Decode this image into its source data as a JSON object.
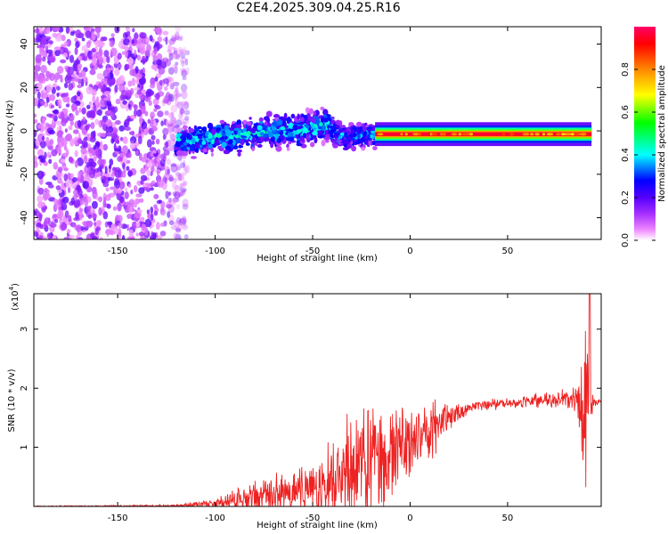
{
  "title": "C2E4.2025.309.04.25.R16",
  "chart_data": [
    {
      "type": "heatmap",
      "title": "",
      "xlabel": "Height of straight line (km)",
      "ylabel": "Frequency (Hz)",
      "xlim": [
        -193,
        98
      ],
      "ylim": [
        -50,
        48
      ],
      "xticks": [
        -150,
        -100,
        -50,
        0,
        50
      ],
      "yticks": [
        -40,
        -20,
        0,
        20,
        40
      ],
      "colorbar": {
        "label": "Normalized spectral amplitude",
        "range": [
          0.0,
          1.0
        ],
        "ticks": [
          "0.0",
          "0.2",
          "0.4",
          "0.6",
          "0.8"
        ],
        "tick_values": [
          0.0,
          0.2,
          0.4,
          0.6,
          0.8
        ],
        "colors": [
          "#ffffff",
          "#ee88ff",
          "#8800ff",
          "#0000ff",
          "#00ffff",
          "#00ff00",
          "#ffff00",
          "#ff8800",
          "#ff0000",
          "#ff0066"
        ]
      },
      "regions": [
        {
          "x": [
            -193,
            -120
          ],
          "freq_spread": 48,
          "amplitude": 0.15,
          "description_of_shape": "noise"
        },
        {
          "x": [
            -120,
            -40
          ],
          "freq_center_start": -5,
          "freq_center_end": 2,
          "freq_width": 10,
          "amplitude": 0.35
        },
        {
          "x": [
            -40,
            -18
          ],
          "freq_center": -2,
          "freq_width": 8,
          "amplitude": 0.3
        },
        {
          "x": [
            -18,
            93
          ],
          "freq_center": -1.5,
          "freq_width": 2,
          "amplitude": 0.95
        }
      ]
    },
    {
      "type": "line",
      "title": "",
      "xlabel": "Height of straight line (km)",
      "ylabel": "SNR (10 * v/v)",
      "y_multiplier": "(x10",
      "y_multiplier_exp": "4",
      "y_multiplier_close": ")",
      "xlim": [
        -193,
        98
      ],
      "ylim": [
        0,
        3.6
      ],
      "xticks": [
        -150,
        -100,
        -50,
        0,
        50
      ],
      "yticks": [
        1,
        2,
        3
      ],
      "series": [
        {
          "color": "#ee2222",
          "envelope": [
            {
              "x": -193,
              "mean": 0.0,
              "spread": 0.01
            },
            {
              "x": -120,
              "mean": 0.01,
              "spread": 0.02
            },
            {
              "x": -100,
              "mean": 0.05,
              "spread": 0.08
            },
            {
              "x": -80,
              "mean": 0.15,
              "spread": 0.3
            },
            {
              "x": -60,
              "mean": 0.25,
              "spread": 0.35
            },
            {
              "x": -45,
              "mean": 0.4,
              "spread": 0.6
            },
            {
              "x": -30,
              "mean": 0.6,
              "spread": 0.9
            },
            {
              "x": -20,
              "mean": 0.8,
              "spread": 1.1
            },
            {
              "x": -10,
              "mean": 0.95,
              "spread": 0.8
            },
            {
              "x": 0,
              "mean": 1.1,
              "spread": 0.6
            },
            {
              "x": 10,
              "mean": 1.3,
              "spread": 0.5
            },
            {
              "x": 20,
              "mean": 1.5,
              "spread": 0.25
            },
            {
              "x": 30,
              "mean": 1.68,
              "spread": 0.1
            },
            {
              "x": 50,
              "mean": 1.75,
              "spread": 0.08
            },
            {
              "x": 70,
              "mean": 1.8,
              "spread": 0.12
            },
            {
              "x": 85,
              "mean": 1.82,
              "spread": 0.2
            },
            {
              "x": 91,
              "mean": 1.7,
              "spread": 1.8
            },
            {
              "x": 93,
              "mean": 1.75,
              "spread": 0.2
            },
            {
              "x": 98,
              "mean": 1.78,
              "spread": 0.02
            }
          ],
          "peak": {
            "x": 92,
            "y": 3.6
          }
        }
      ]
    }
  ]
}
